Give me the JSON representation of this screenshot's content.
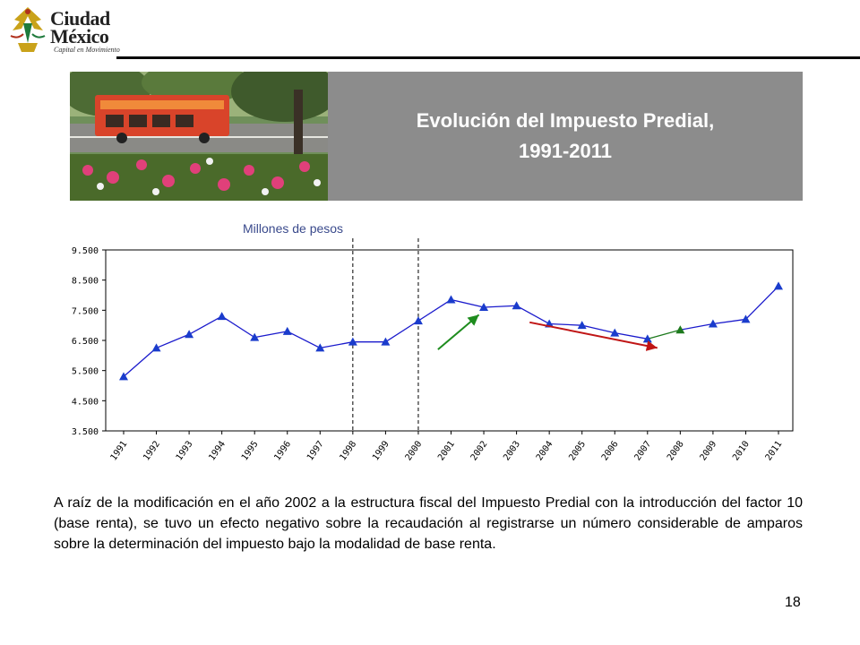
{
  "logo": {
    "line1": "Ciudad",
    "line2": "México",
    "tagline": "Capital en Movimiento"
  },
  "title": {
    "line1": "Evolución del Impuesto Predial,",
    "line2": "1991-2011"
  },
  "units_label": "Millones de pesos",
  "chart_data": {
    "type": "line",
    "x": [
      "1991",
      "1992",
      "1993",
      "1994",
      "1995",
      "1996",
      "1997",
      "1998",
      "1999",
      "2000",
      "2001",
      "2002",
      "2003",
      "2004",
      "2005",
      "2006",
      "2007",
      "2008",
      "2009",
      "2010",
      "2011"
    ],
    "values": [
      5.3,
      6.25,
      6.7,
      7.3,
      6.6,
      6.8,
      6.25,
      6.45,
      6.45,
      7.15,
      7.85,
      7.6,
      7.65,
      7.05,
      7.0,
      6.75,
      6.55,
      6.85,
      7.05,
      7.2,
      8.3
    ],
    "yticks": [
      "3.500",
      "4.500",
      "5.500",
      "6.500",
      "7.500",
      "8.500",
      "9.500"
    ],
    "ylim": [
      3.5,
      9.5
    ],
    "line_color": "#1a1acc",
    "marker_color": "#1a3ccc",
    "highlight": {
      "x": "2008",
      "color": "#1e7a1e"
    },
    "reference_lines": [
      "1998",
      "2000"
    ],
    "annotations": [
      {
        "type": "arrow",
        "direction": "up",
        "color": "#1e8c1e"
      },
      {
        "type": "arrow",
        "direction": "down",
        "color": "#c01515"
      }
    ]
  },
  "paragraph": "A raíz de la modificación en el año 2002 a la estructura fiscal del Impuesto Predial con la introducción del factor 10 (base renta), se tuvo un efecto negativo sobre la recaudación al registrarse un número considerable de amparos sobre la determinación del impuesto bajo la modalidad de base renta.",
  "page_number": "18"
}
